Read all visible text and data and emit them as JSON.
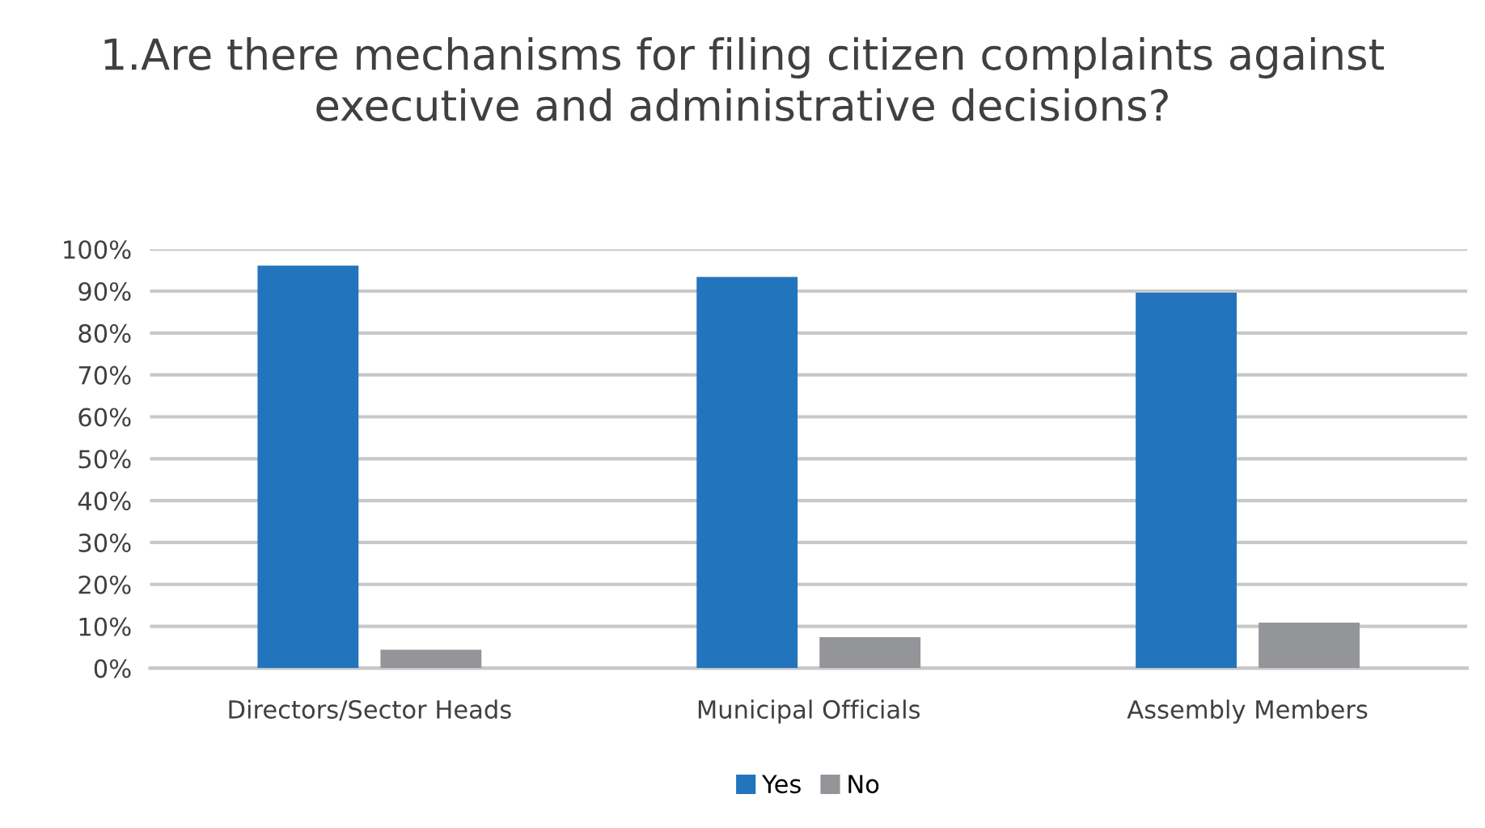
{
  "chart_data": {
    "type": "bar",
    "title": "1.Are there mechanisms for filing citizen complaints against\nexecutive and administrative decisions?",
    "categories": [
      "Directors/Sector Heads",
      "Municipal Officials",
      "Assembly Members"
    ],
    "series": [
      {
        "name": "Yes",
        "color": "#2274bd",
        "values": [
          96.1,
          93.4,
          89.6
        ]
      },
      {
        "name": "No",
        "color": "#939598",
        "values": [
          4.4,
          7.4,
          10.9
        ]
      }
    ],
    "ylim": [
      0,
      100
    ],
    "yticks": [
      {
        "value": 0,
        "label": "0%"
      },
      {
        "value": 10,
        "label": "10%"
      },
      {
        "value": 20,
        "label": "20%"
      },
      {
        "value": 30,
        "label": "30%"
      },
      {
        "value": 40,
        "label": "40%"
      },
      {
        "value": 50,
        "label": "50%"
      },
      {
        "value": 60,
        "label": "60%"
      },
      {
        "value": 70,
        "label": "70%"
      },
      {
        "value": 80,
        "label": "80%"
      },
      {
        "value": 90,
        "label": "90%"
      },
      {
        "value": 100,
        "label": "100%"
      }
    ],
    "grid": "y",
    "legend": "bottom"
  }
}
